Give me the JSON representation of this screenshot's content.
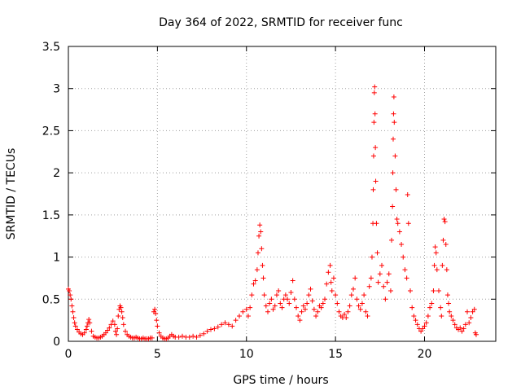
{
  "chart_data": {
    "type": "scatter",
    "title": "Day 364 of 2022, SRMTID for receiver func",
    "xlabel": "GPS time / hours",
    "ylabel": "SRMTID / TECUs",
    "xlim": [
      0,
      24
    ],
    "ylim": [
      0,
      3.5
    ],
    "xticks": [
      0,
      5,
      10,
      15,
      20
    ],
    "xtick_labels": [
      "0",
      "5",
      "10",
      "15",
      "20"
    ],
    "yticks": [
      0,
      0.5,
      1,
      1.5,
      2,
      2.5,
      3,
      3.5
    ],
    "ytick_labels": [
      "0",
      "0.5",
      "1",
      "1.5",
      "2",
      "2.5",
      "3",
      "3.5"
    ],
    "grid": true,
    "marker": "+",
    "color": "#ff0000",
    "series": [
      {
        "name": "SRMTID",
        "points": [
          [
            0.0,
            0.62
          ],
          [
            0.05,
            0.6
          ],
          [
            0.1,
            0.55
          ],
          [
            0.15,
            0.5
          ],
          [
            0.2,
            0.42
          ],
          [
            0.25,
            0.35
          ],
          [
            0.3,
            0.28
          ],
          [
            0.35,
            0.22
          ],
          [
            0.4,
            0.18
          ],
          [
            0.5,
            0.14
          ],
          [
            0.6,
            0.11
          ],
          [
            0.7,
            0.09
          ],
          [
            0.8,
            0.08
          ],
          [
            0.9,
            0.1
          ],
          [
            1.0,
            0.14
          ],
          [
            1.05,
            0.18
          ],
          [
            1.1,
            0.22
          ],
          [
            1.15,
            0.26
          ],
          [
            1.2,
            0.22
          ],
          [
            1.3,
            0.12
          ],
          [
            1.4,
            0.06
          ],
          [
            1.5,
            0.05
          ],
          [
            1.6,
            0.04
          ],
          [
            1.7,
            0.04
          ],
          [
            1.8,
            0.05
          ],
          [
            1.9,
            0.06
          ],
          [
            2.0,
            0.08
          ],
          [
            2.1,
            0.1
          ],
          [
            2.2,
            0.13
          ],
          [
            2.3,
            0.16
          ],
          [
            2.4,
            0.2
          ],
          [
            2.5,
            0.24
          ],
          [
            2.6,
            0.2
          ],
          [
            2.65,
            0.12
          ],
          [
            2.7,
            0.08
          ],
          [
            2.75,
            0.15
          ],
          [
            2.8,
            0.3
          ],
          [
            2.85,
            0.38
          ],
          [
            2.9,
            0.42
          ],
          [
            2.95,
            0.4
          ],
          [
            3.0,
            0.35
          ],
          [
            3.05,
            0.28
          ],
          [
            3.1,
            0.2
          ],
          [
            3.2,
            0.12
          ],
          [
            3.3,
            0.08
          ],
          [
            3.4,
            0.06
          ],
          [
            3.5,
            0.05
          ],
          [
            3.6,
            0.04
          ],
          [
            3.7,
            0.04
          ],
          [
            3.8,
            0.05
          ],
          [
            3.9,
            0.04
          ],
          [
            4.0,
            0.03
          ],
          [
            4.1,
            0.03
          ],
          [
            4.2,
            0.04
          ],
          [
            4.3,
            0.03
          ],
          [
            4.4,
            0.03
          ],
          [
            4.5,
            0.03
          ],
          [
            4.6,
            0.04
          ],
          [
            4.7,
            0.04
          ],
          [
            4.8,
            0.35
          ],
          [
            4.85,
            0.38
          ],
          [
            4.9,
            0.33
          ],
          [
            4.95,
            0.25
          ],
          [
            5.0,
            0.18
          ],
          [
            5.1,
            0.1
          ],
          [
            5.2,
            0.06
          ],
          [
            5.3,
            0.04
          ],
          [
            5.4,
            0.03
          ],
          [
            5.5,
            0.03
          ],
          [
            5.6,
            0.04
          ],
          [
            5.7,
            0.06
          ],
          [
            5.8,
            0.08
          ],
          [
            5.9,
            0.06
          ],
          [
            6.0,
            0.05
          ],
          [
            6.2,
            0.05
          ],
          [
            6.4,
            0.06
          ],
          [
            6.6,
            0.05
          ],
          [
            6.8,
            0.05
          ],
          [
            7.0,
            0.06
          ],
          [
            7.2,
            0.05
          ],
          [
            7.4,
            0.07
          ],
          [
            7.6,
            0.09
          ],
          [
            7.8,
            0.12
          ],
          [
            8.0,
            0.14
          ],
          [
            8.2,
            0.15
          ],
          [
            8.4,
            0.17
          ],
          [
            8.6,
            0.2
          ],
          [
            8.8,
            0.22
          ],
          [
            9.0,
            0.2
          ],
          [
            9.2,
            0.18
          ],
          [
            9.4,
            0.25
          ],
          [
            9.6,
            0.3
          ],
          [
            9.8,
            0.35
          ],
          [
            10.0,
            0.38
          ],
          [
            10.1,
            0.3
          ],
          [
            10.2,
            0.4
          ],
          [
            10.3,
            0.55
          ],
          [
            10.4,
            0.68
          ],
          [
            10.5,
            0.72
          ],
          [
            10.6,
            0.85
          ],
          [
            10.65,
            1.05
          ],
          [
            10.7,
            1.25
          ],
          [
            10.75,
            1.38
          ],
          [
            10.8,
            1.3
          ],
          [
            10.85,
            1.1
          ],
          [
            10.9,
            0.9
          ],
          [
            10.95,
            0.75
          ],
          [
            11.0,
            0.55
          ],
          [
            11.1,
            0.42
          ],
          [
            11.2,
            0.35
          ],
          [
            11.3,
            0.45
          ],
          [
            11.4,
            0.5
          ],
          [
            11.5,
            0.38
          ],
          [
            11.6,
            0.42
          ],
          [
            11.7,
            0.55
          ],
          [
            11.8,
            0.6
          ],
          [
            11.9,
            0.45
          ],
          [
            12.0,
            0.4
          ],
          [
            12.1,
            0.5
          ],
          [
            12.2,
            0.55
          ],
          [
            12.3,
            0.5
          ],
          [
            12.4,
            0.45
          ],
          [
            12.5,
            0.58
          ],
          [
            12.6,
            0.72
          ],
          [
            12.7,
            0.5
          ],
          [
            12.8,
            0.4
          ],
          [
            12.9,
            0.3
          ],
          [
            13.0,
            0.25
          ],
          [
            13.1,
            0.35
          ],
          [
            13.2,
            0.42
          ],
          [
            13.3,
            0.38
          ],
          [
            13.4,
            0.45
          ],
          [
            13.5,
            0.55
          ],
          [
            13.6,
            0.62
          ],
          [
            13.7,
            0.48
          ],
          [
            13.8,
            0.38
          ],
          [
            13.9,
            0.3
          ],
          [
            14.0,
            0.35
          ],
          [
            14.1,
            0.42
          ],
          [
            14.2,
            0.4
          ],
          [
            14.3,
            0.45
          ],
          [
            14.4,
            0.5
          ],
          [
            14.5,
            0.68
          ],
          [
            14.6,
            0.82
          ],
          [
            14.7,
            0.9
          ],
          [
            14.75,
            0.7
          ],
          [
            14.8,
            0.6
          ],
          [
            14.9,
            0.75
          ],
          [
            15.0,
            0.55
          ],
          [
            15.1,
            0.45
          ],
          [
            15.2,
            0.35
          ],
          [
            15.3,
            0.3
          ],
          [
            15.4,
            0.28
          ],
          [
            15.5,
            0.32
          ],
          [
            15.6,
            0.28
          ],
          [
            15.7,
            0.35
          ],
          [
            15.8,
            0.42
          ],
          [
            15.9,
            0.55
          ],
          [
            16.0,
            0.62
          ],
          [
            16.1,
            0.75
          ],
          [
            16.2,
            0.5
          ],
          [
            16.3,
            0.42
          ],
          [
            16.4,
            0.38
          ],
          [
            16.5,
            0.45
          ],
          [
            16.6,
            0.55
          ],
          [
            16.7,
            0.35
          ],
          [
            16.8,
            0.3
          ],
          [
            16.9,
            0.65
          ],
          [
            17.0,
            0.75
          ],
          [
            17.05,
            1.0
          ],
          [
            17.1,
            1.4
          ],
          [
            17.12,
            1.8
          ],
          [
            17.14,
            2.2
          ],
          [
            17.16,
            2.6
          ],
          [
            17.18,
            2.95
          ],
          [
            17.2,
            3.02
          ],
          [
            17.22,
            2.7
          ],
          [
            17.24,
            2.3
          ],
          [
            17.26,
            1.9
          ],
          [
            17.3,
            1.4
          ],
          [
            17.35,
            1.05
          ],
          [
            17.4,
            0.7
          ],
          [
            17.5,
            0.8
          ],
          [
            17.6,
            0.9
          ],
          [
            17.7,
            0.65
          ],
          [
            17.8,
            0.5
          ],
          [
            17.9,
            0.7
          ],
          [
            18.0,
            0.8
          ],
          [
            18.1,
            0.6
          ],
          [
            18.15,
            1.2
          ],
          [
            18.2,
            1.6
          ],
          [
            18.22,
            2.0
          ],
          [
            18.24,
            2.4
          ],
          [
            18.26,
            2.7
          ],
          [
            18.28,
            2.9
          ],
          [
            18.3,
            2.6
          ],
          [
            18.35,
            2.2
          ],
          [
            18.4,
            1.8
          ],
          [
            18.45,
            1.45
          ],
          [
            18.5,
            1.4
          ],
          [
            18.6,
            1.3
          ],
          [
            18.7,
            1.15
          ],
          [
            18.8,
            1.0
          ],
          [
            18.9,
            0.85
          ],
          [
            19.0,
            0.75
          ],
          [
            19.05,
            1.74
          ],
          [
            19.1,
            1.4
          ],
          [
            19.2,
            0.6
          ],
          [
            19.3,
            0.4
          ],
          [
            19.4,
            0.3
          ],
          [
            19.5,
            0.25
          ],
          [
            19.6,
            0.2
          ],
          [
            19.7,
            0.15
          ],
          [
            19.8,
            0.12
          ],
          [
            19.9,
            0.15
          ],
          [
            20.0,
            0.18
          ],
          [
            20.1,
            0.22
          ],
          [
            20.2,
            0.3
          ],
          [
            20.3,
            0.4
          ],
          [
            20.4,
            0.45
          ],
          [
            20.5,
            0.6
          ],
          [
            20.55,
            0.9
          ],
          [
            20.6,
            1.12
          ],
          [
            20.65,
            1.05
          ],
          [
            20.7,
            0.85
          ],
          [
            20.8,
            0.6
          ],
          [
            20.9,
            0.4
          ],
          [
            20.95,
            0.3
          ],
          [
            21.0,
            0.9
          ],
          [
            21.05,
            1.2
          ],
          [
            21.1,
            1.45
          ],
          [
            21.15,
            1.42
          ],
          [
            21.2,
            1.15
          ],
          [
            21.25,
            0.85
          ],
          [
            21.3,
            0.55
          ],
          [
            21.35,
            0.45
          ],
          [
            21.4,
            0.35
          ],
          [
            21.5,
            0.3
          ],
          [
            21.6,
            0.25
          ],
          [
            21.7,
            0.2
          ],
          [
            21.8,
            0.16
          ],
          [
            21.9,
            0.14
          ],
          [
            22.0,
            0.16
          ],
          [
            22.1,
            0.12
          ],
          [
            22.2,
            0.15
          ],
          [
            22.3,
            0.2
          ],
          [
            22.4,
            0.35
          ],
          [
            22.5,
            0.22
          ],
          [
            22.6,
            0.28
          ],
          [
            22.7,
            0.35
          ],
          [
            22.8,
            0.38
          ],
          [
            22.85,
            0.1
          ],
          [
            22.9,
            0.08
          ]
        ]
      }
    ]
  }
}
